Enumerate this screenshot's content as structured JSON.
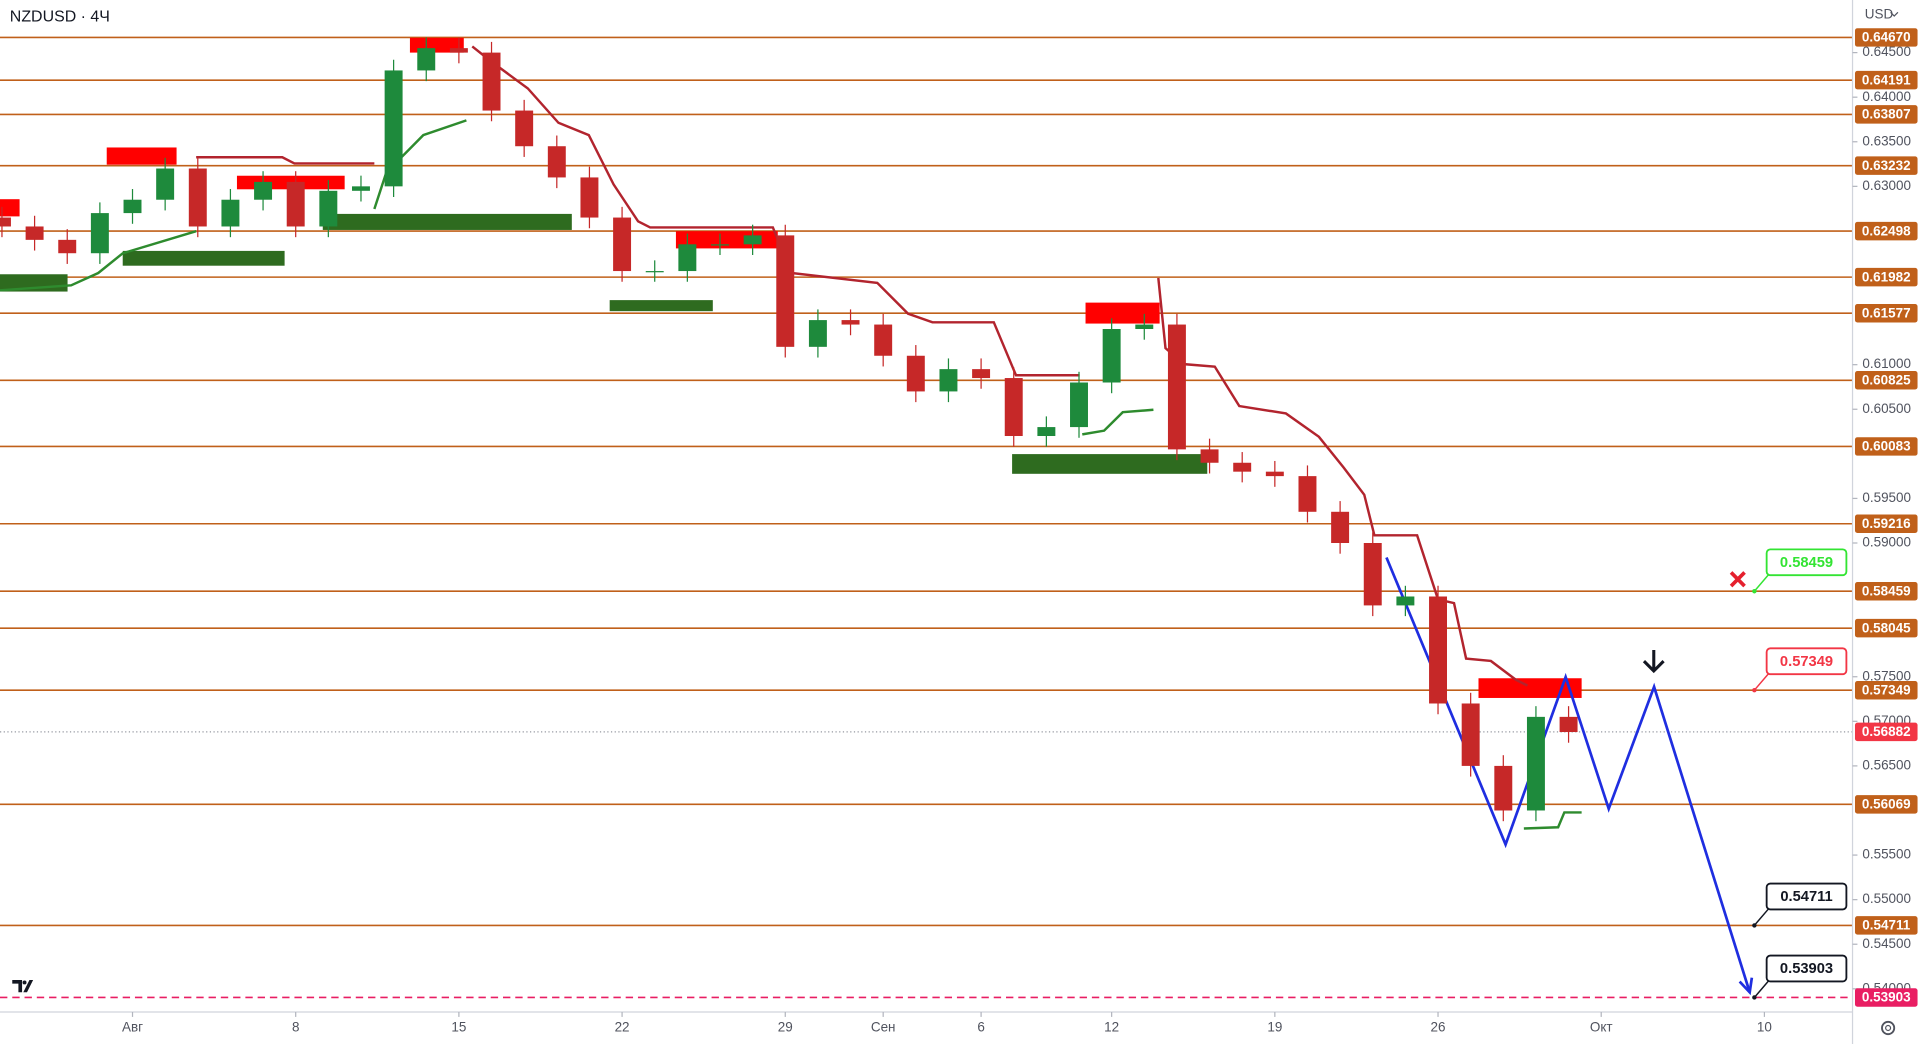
{
  "chart_data": {
    "type": "candlestick",
    "title": "NZDUSD · 4Ч",
    "currency": "USD",
    "xlim": [
      -4.06,
      52.7
    ],
    "xticks": [
      {
        "value": 0,
        "label": "Авг"
      },
      {
        "value": 5,
        "label": "8"
      },
      {
        "value": 10,
        "label": "15"
      },
      {
        "value": 15,
        "label": "22"
      },
      {
        "value": 20,
        "label": "29"
      },
      {
        "value": 23,
        "label": "Сен"
      },
      {
        "value": 26,
        "label": "6"
      },
      {
        "value": 30,
        "label": "12"
      },
      {
        "value": 35,
        "label": "19"
      },
      {
        "value": 40,
        "label": "26"
      },
      {
        "value": 45,
        "label": "Окт"
      },
      {
        "value": 50,
        "label": "10"
      }
    ],
    "ylim": [
      0.5374,
      0.6509
    ],
    "yticks": [
      {
        "value": 0.645,
        "label": "0.64500"
      },
      {
        "value": 0.64,
        "label": "0.64000"
      },
      {
        "value": 0.635,
        "label": "0.63500"
      },
      {
        "value": 0.63,
        "label": "0.63000"
      },
      {
        "value": 0.61,
        "label": "0.61000"
      },
      {
        "value": 0.605,
        "label": "0.60500"
      },
      {
        "value": 0.595,
        "label": "0.59500"
      },
      {
        "value": 0.59,
        "label": "0.59000"
      },
      {
        "value": 0.575,
        "label": "0.57500"
      },
      {
        "value": 0.57,
        "label": "0.57000"
      },
      {
        "value": 0.565,
        "label": "0.56500"
      },
      {
        "value": 0.555,
        "label": "0.55500"
      },
      {
        "value": 0.55,
        "label": "0.55000"
      },
      {
        "value": 0.545,
        "label": "0.54500"
      },
      {
        "value": 0.54,
        "label": "0.54000"
      }
    ],
    "level_color": "#c0601a",
    "levels": [
      {
        "value": 0.6467,
        "label": "0.64670"
      },
      0.64191,
      0.63807,
      0.63232,
      0.62498,
      0.61982,
      0.61577,
      0.60825,
      0.60083,
      0.59216,
      0.58459,
      0.58045,
      0.57349,
      0.56069,
      0.54711
    ],
    "last_price": 0.56882,
    "last_price_color": "#f23645",
    "target_level": 0.53903,
    "target_color": "#e91e63",
    "candles": {
      "up_color": "#1e8a3c",
      "down_color": "#c62828",
      "x": [
        -4,
        -3,
        -2,
        -1,
        0,
        1,
        2,
        3,
        4,
        5,
        6,
        7,
        8,
        9,
        10,
        11,
        12,
        13,
        14,
        15,
        16,
        17,
        18,
        19,
        20,
        21,
        22,
        23,
        24,
        25,
        26,
        27,
        28,
        29,
        30,
        31,
        32,
        33,
        34,
        35,
        36,
        37,
        38,
        39,
        40,
        41,
        42,
        43,
        44
      ],
      "open": [
        0.6265,
        0.6255,
        0.624,
        0.6225,
        0.627,
        0.6285,
        0.632,
        0.6255,
        0.6285,
        0.6305,
        0.6255,
        0.6295,
        0.63,
        0.643,
        0.6455,
        0.645,
        0.6385,
        0.6345,
        0.631,
        0.6265,
        0.6205,
        0.6205,
        0.6235,
        0.6235,
        0.6245,
        0.612,
        0.615,
        0.6145,
        0.611,
        0.607,
        0.6095,
        0.6085,
        0.602,
        0.603,
        0.608,
        0.614,
        0.6145,
        0.6005,
        0.599,
        0.598,
        0.5975,
        0.5935,
        0.59,
        0.583,
        0.584,
        0.572,
        0.565,
        0.56,
        0.5705
      ],
      "high": [
        0.6277,
        0.6267,
        0.6252,
        0.6282,
        0.6297,
        0.6332,
        0.6332,
        0.6297,
        0.6317,
        0.6317,
        0.6307,
        0.6312,
        0.6442,
        0.6467,
        0.6467,
        0.6462,
        0.6397,
        0.6357,
        0.6322,
        0.6277,
        0.6217,
        0.6247,
        0.6247,
        0.6257,
        0.6257,
        0.6162,
        0.6162,
        0.6157,
        0.6122,
        0.6107,
        0.6107,
        0.6097,
        0.6042,
        0.6092,
        0.6152,
        0.6157,
        0.6157,
        0.6017,
        0.6002,
        0.5992,
        0.5987,
        0.5947,
        0.5912,
        0.5852,
        0.5852,
        0.5732,
        0.5662,
        0.5717,
        0.5717
      ],
      "low": [
        0.6243,
        0.6228,
        0.6213,
        0.6213,
        0.6258,
        0.6273,
        0.6243,
        0.6243,
        0.6273,
        0.6243,
        0.6243,
        0.6283,
        0.6288,
        0.6418,
        0.6438,
        0.6373,
        0.6333,
        0.6298,
        0.6253,
        0.6193,
        0.6193,
        0.6193,
        0.6223,
        0.6223,
        0.6108,
        0.6108,
        0.6133,
        0.6098,
        0.6058,
        0.6058,
        0.6073,
        0.6008,
        0.6008,
        0.6018,
        0.6068,
        0.6128,
        0.5993,
        0.5978,
        0.5968,
        0.5963,
        0.5923,
        0.5888,
        0.5818,
        0.5818,
        0.5708,
        0.5638,
        0.5588,
        0.5588,
        0.5676
      ],
      "close": [
        0.6255,
        0.624,
        0.6225,
        0.627,
        0.6285,
        0.632,
        0.6255,
        0.6285,
        0.6305,
        0.6255,
        0.6295,
        0.63,
        0.643,
        0.6455,
        0.645,
        0.6385,
        0.6345,
        0.631,
        0.6265,
        0.6205,
        0.6205,
        0.6235,
        0.6235,
        0.6245,
        0.612,
        0.615,
        0.6145,
        0.611,
        0.607,
        0.6095,
        0.6085,
        0.602,
        0.603,
        0.608,
        0.614,
        0.6145,
        0.6005,
        0.599,
        0.598,
        0.5975,
        0.5935,
        0.59,
        0.583,
        0.584,
        0.572,
        0.565,
        0.56,
        0.5705,
        0.5688
      ]
    },
    "zones": [
      {
        "color": "#ff0000",
        "x": [
          -4.06,
          -3.46
        ],
        "y": [
          0.62856,
          0.62663
        ]
      },
      {
        "color": "#ff0000",
        "x": [
          -0.79,
          1.35
        ],
        "y": [
          0.63436,
          0.63243
        ]
      },
      {
        "color": "#ff0000",
        "x": [
          3.2,
          6.5
        ],
        "y": [
          0.63119,
          0.62967
        ]
      },
      {
        "color": "#ff0000",
        "x": [
          8.5,
          10.15
        ],
        "y": [
          0.64666,
          0.645
        ]
      },
      {
        "color": "#ff0000",
        "x": [
          16.65,
          19.77
        ],
        "y": [
          0.62497,
          0.62304
        ]
      },
      {
        "color": "#ff0000",
        "x": [
          29.2,
          31.47
        ],
        "y": [
          0.61696,
          0.61461
        ]
      },
      {
        "color": "#ff0000",
        "x": [
          41.24,
          44.4
        ],
        "y": [
          0.57483,
          0.57262
        ]
      },
      {
        "color": "#2e6b1f",
        "x": [
          -4.06,
          -1.99
        ],
        "y": [
          0.62014,
          0.6182
        ]
      },
      {
        "color": "#2e6b1f",
        "x": [
          -0.3,
          4.66
        ],
        "y": [
          0.62276,
          0.6211
        ]
      },
      {
        "color": "#2e6b1f",
        "x": [
          5.83,
          13.46
        ],
        "y": [
          0.62691,
          0.62511
        ]
      },
      {
        "color": "#2e6b1f",
        "x": [
          14.62,
          17.78
        ],
        "y": [
          0.61724,
          0.616
        ]
      },
      {
        "color": "#2e6b1f",
        "x": [
          26.95,
          32.93
        ],
        "y": [
          0.59997,
          0.59776
        ]
      }
    ],
    "series": [
      {
        "color": "#b2242e",
        "x": [
          1.95,
          4.59,
          4.96,
          7.41,
          null,
          10.41,
          10.98,
          12.11,
          13.05,
          13.98,
          14.74,
          15.49,
          15.86,
          19.62,
          20.19,
          22.82,
          23.76,
          24.51,
          26.39,
          27.07,
          29.02,
          null,
          31.43,
          31.65,
          32.22,
          33.16,
          33.91,
          35.34,
          36.35,
          37.11,
          37.74,
          38.05,
          39.36,
          40.0,
          40.49,
          40.86,
          41.62,
          42.37,
          42.74
        ],
        "values": [
          0.63326,
          0.63326,
          0.63257,
          0.63257,
          null,
          0.64569,
          0.64403,
          0.64099,
          0.63713,
          0.63575,
          0.63022,
          0.62608,
          0.62539,
          0.62539,
          0.62028,
          0.61917,
          0.61572,
          0.61475,
          0.61475,
          0.60881,
          0.60881,
          null,
          0.61972,
          0.61185,
          0.61006,
          0.60978,
          0.60536,
          0.60453,
          0.60191,
          0.59845,
          0.59541,
          0.59086,
          0.59086,
          0.58367,
          0.58326,
          0.57704,
          0.57677,
          0.5747,
          0.57401
        ]
      },
      {
        "color": "#2e8b2e",
        "x": [
          -4.06,
          -1.88,
          -1.05,
          -0.3,
          1.95,
          null,
          7.41,
          7.78,
          8.35,
          8.91,
          10.23,
          null,
          29.1,
          29.77,
          30.34,
          31.28,
          null,
          42.63,
          43.68,
          43.87,
          44.4
        ],
        "values": [
          0.61834,
          0.6189,
          0.62028,
          0.62249,
          0.62497,
          null,
          0.62746,
          0.6316,
          0.63367,
          0.63575,
          0.6374,
          null,
          0.60218,
          0.6026,
          0.60467,
          0.60494,
          null,
          0.55798,
          0.55812,
          0.55978,
          0.55978
        ]
      },
      {
        "color": "#1f2ee0",
        "x": [
          38.42,
          42.07,
          43.91,
          45.23,
          46.62,
          49.55
        ],
        "values": [
          0.58837,
          0.55619,
          0.57497,
          0.56019,
          0.57387,
          0.53961
        ]
      }
    ],
    "callouts": [
      {
        "value": 0.58459,
        "color": "#33e433"
      },
      {
        "value": 0.57349,
        "color": "#f23645"
      },
      {
        "value": 0.54711,
        "color": "#131722"
      },
      {
        "value": 0.53903,
        "color": "#131722"
      }
    ]
  }
}
